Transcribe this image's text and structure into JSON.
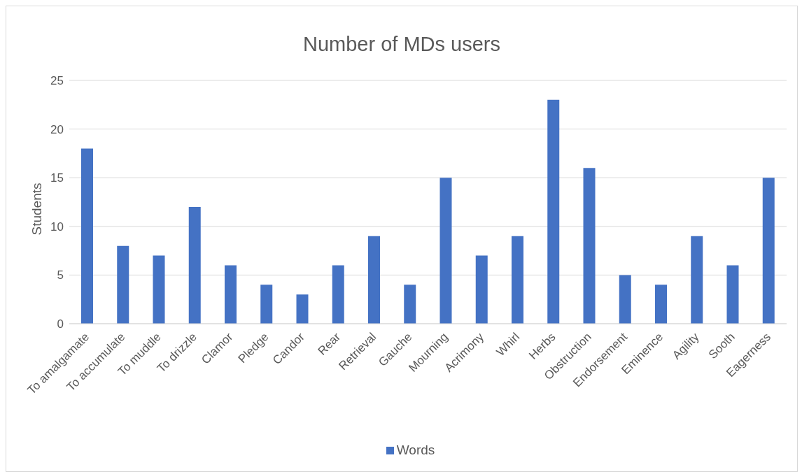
{
  "chart_data": {
    "type": "bar",
    "title": "Number of MDs users",
    "ylabel": "Students",
    "categories": [
      "To amalgamate",
      "To accumulate",
      "To muddle",
      "To drizzle",
      "Clamor",
      "Pledge",
      "Candor",
      "Rear",
      "Retrieval",
      "Gauche",
      "Mourning",
      "Acrimony",
      "Whirl",
      "Herbs",
      "Obstruction",
      "Endorsement",
      "Eminence",
      "Agility",
      "Sooth",
      "Eagerness"
    ],
    "series": [
      {
        "name": "Words",
        "color": "#4472c4",
        "values": [
          18,
          8,
          7,
          12,
          6,
          4,
          3,
          6,
          9,
          4,
          15,
          7,
          9,
          23,
          16,
          5,
          4,
          9,
          6,
          15
        ]
      }
    ],
    "ylim": [
      0,
      25
    ],
    "yticks": [
      0,
      5,
      10,
      15,
      20,
      25
    ],
    "grid": "y",
    "legend": "bottom"
  }
}
